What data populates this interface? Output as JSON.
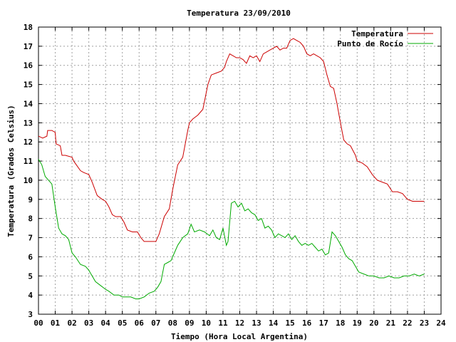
{
  "chart_data": {
    "type": "line",
    "title": "Temperatura 23/09/2010",
    "xlabel": "Tiempo (Hora Local Argentina)",
    "ylabel": "Temperatura (Grados Celsius)",
    "xlim": [
      0,
      24
    ],
    "ylim": [
      3,
      18
    ],
    "x_tick_labels": [
      "00",
      "01",
      "02",
      "03",
      "04",
      "05",
      "06",
      "07",
      "08",
      "09",
      "10",
      "11",
      "12",
      "13",
      "14",
      "15",
      "16",
      "17",
      "18",
      "19",
      "20",
      "21",
      "22",
      "23",
      "24"
    ],
    "y_tick_labels": [
      "3",
      "4",
      "5",
      "6",
      "7",
      "8",
      "9",
      "10",
      "11",
      "12",
      "13",
      "14",
      "15",
      "16",
      "17",
      "18"
    ],
    "grid": true,
    "legend_position": "top-right",
    "series": [
      {
        "name": "Temperatura",
        "color": "#cc0000",
        "x": [
          0,
          0.25,
          0.5,
          0.55,
          0.8,
          1.0,
          1.05,
          1.3,
          1.4,
          1.6,
          2.0,
          2.1,
          2.5,
          2.7,
          3.0,
          3.2,
          3.5,
          3.8,
          4.0,
          4.2,
          4.4,
          4.6,
          4.9,
          5.1,
          5.3,
          5.6,
          5.9,
          6.1,
          6.3,
          6.6,
          6.9,
          7.0,
          7.2,
          7.5,
          7.8,
          8.0,
          8.3,
          8.6,
          8.9,
          9.0,
          9.2,
          9.5,
          9.8,
          10.1,
          10.3,
          10.6,
          10.9,
          11.1,
          11.2,
          11.4,
          11.6,
          11.8,
          12.0,
          12.2,
          12.4,
          12.6,
          12.8,
          13.0,
          13.2,
          13.4,
          13.6,
          13.8,
          14.0,
          14.2,
          14.4,
          14.6,
          14.8,
          15.0,
          15.2,
          15.4,
          15.6,
          15.8,
          16.0,
          16.2,
          16.4,
          16.6,
          16.8,
          17.0,
          17.2,
          17.4,
          17.6,
          17.8,
          18.0,
          18.2,
          18.4,
          18.6,
          18.9,
          19.0,
          19.3,
          19.6,
          19.9,
          20.2,
          20.5,
          20.8,
          21.1,
          21.4,
          21.7,
          22.0,
          22.3,
          22.6,
          22.8,
          23.0
        ],
        "values": [
          12.3,
          12.2,
          12.3,
          12.6,
          12.6,
          12.5,
          11.9,
          11.8,
          11.3,
          11.3,
          11.2,
          11.0,
          10.5,
          10.4,
          10.3,
          9.9,
          9.2,
          9.0,
          8.9,
          8.6,
          8.2,
          8.1,
          8.1,
          7.8,
          7.4,
          7.3,
          7.3,
          7.0,
          6.8,
          6.8,
          6.8,
          6.8,
          7.2,
          8.1,
          8.5,
          9.5,
          10.8,
          11.2,
          12.6,
          13.0,
          13.2,
          13.4,
          13.7,
          15.0,
          15.5,
          15.6,
          15.7,
          15.9,
          16.2,
          16.6,
          16.5,
          16.4,
          16.4,
          16.3,
          16.1,
          16.5,
          16.4,
          16.5,
          16.2,
          16.6,
          16.7,
          16.8,
          16.9,
          17.0,
          16.8,
          16.9,
          16.9,
          17.3,
          17.4,
          17.3,
          17.2,
          17.0,
          16.6,
          16.5,
          16.6,
          16.5,
          16.4,
          16.2,
          15.5,
          14.9,
          14.8,
          14.0,
          13.0,
          12.1,
          11.9,
          11.8,
          11.3,
          11.0,
          10.9,
          10.7,
          10.3,
          10.0,
          9.9,
          9.8,
          9.4,
          9.4,
          9.3,
          9.0,
          8.9,
          8.9,
          8.9,
          8.9
        ]
      },
      {
        "name": "Punto de Rocío",
        "color": "#00aa00",
        "x": [
          0,
          0.2,
          0.4,
          0.6,
          0.8,
          1.0,
          1.2,
          1.4,
          1.6,
          1.8,
          2.0,
          2.2,
          2.5,
          2.8,
          3.0,
          3.2,
          3.4,
          3.7,
          4.0,
          4.2,
          4.5,
          4.8,
          5.0,
          5.3,
          5.5,
          5.8,
          6.0,
          6.3,
          6.6,
          6.9,
          7.1,
          7.3,
          7.5,
          7.7,
          7.9,
          8.1,
          8.3,
          8.6,
          8.9,
          9.1,
          9.3,
          9.6,
          9.9,
          10.2,
          10.4,
          10.6,
          10.8,
          11.0,
          11.2,
          11.3,
          11.5,
          11.7,
          11.9,
          12.1,
          12.3,
          12.5,
          12.7,
          12.9,
          13.1,
          13.3,
          13.5,
          13.7,
          13.9,
          14.1,
          14.3,
          14.5,
          14.7,
          14.9,
          15.1,
          15.3,
          15.5,
          15.7,
          15.9,
          16.1,
          16.3,
          16.5,
          16.7,
          16.9,
          17.1,
          17.3,
          17.5,
          17.7,
          17.9,
          18.1,
          18.3,
          18.5,
          18.7,
          18.9,
          19.1,
          19.4,
          19.7,
          20.0,
          20.3,
          20.6,
          20.9,
          21.2,
          21.5,
          21.8,
          22.1,
          22.4,
          22.7,
          23.0
        ],
        "values": [
          11.1,
          10.8,
          10.2,
          10.0,
          9.8,
          8.6,
          7.5,
          7.2,
          7.1,
          6.9,
          6.2,
          6.0,
          5.6,
          5.5,
          5.3,
          5.0,
          4.7,
          4.5,
          4.3,
          4.2,
          4.0,
          4.0,
          3.9,
          3.9,
          3.9,
          3.8,
          3.8,
          3.9,
          4.1,
          4.2,
          4.4,
          4.7,
          5.6,
          5.7,
          5.8,
          6.2,
          6.6,
          7.0,
          7.2,
          7.7,
          7.3,
          7.4,
          7.3,
          7.1,
          7.4,
          7.0,
          6.9,
          7.5,
          6.6,
          6.8,
          8.8,
          8.9,
          8.6,
          8.8,
          8.4,
          8.5,
          8.3,
          8.2,
          7.9,
          8.0,
          7.5,
          7.6,
          7.4,
          7.0,
          7.2,
          7.1,
          7.0,
          7.2,
          6.9,
          7.1,
          6.8,
          6.6,
          6.7,
          6.6,
          6.7,
          6.5,
          6.3,
          6.4,
          6.1,
          6.2,
          7.3,
          7.1,
          6.8,
          6.5,
          6.1,
          5.9,
          5.8,
          5.5,
          5.2,
          5.1,
          5.0,
          5.0,
          4.9,
          4.9,
          5.0,
          4.9,
          4.9,
          5.0,
          5.0,
          5.1,
          5.0,
          5.1
        ]
      }
    ]
  }
}
